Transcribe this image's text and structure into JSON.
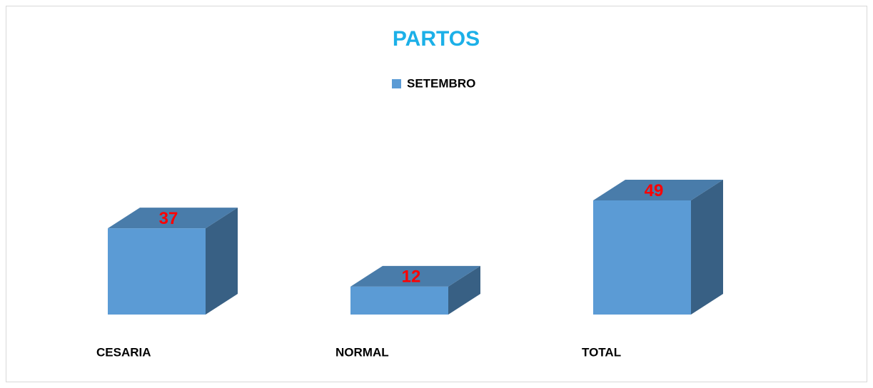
{
  "chart_data": {
    "type": "bar3d",
    "title": "PARTOS",
    "title_color": "#1cb0e8",
    "categories": [
      "CESARIA",
      "NORMAL",
      "TOTAL"
    ],
    "series": [
      {
        "name": "SETEMBRO",
        "color": "#5b9bd5",
        "values": [
          37,
          12,
          49
        ]
      }
    ],
    "value_label_color": "#ff0000",
    "legend": "top"
  }
}
